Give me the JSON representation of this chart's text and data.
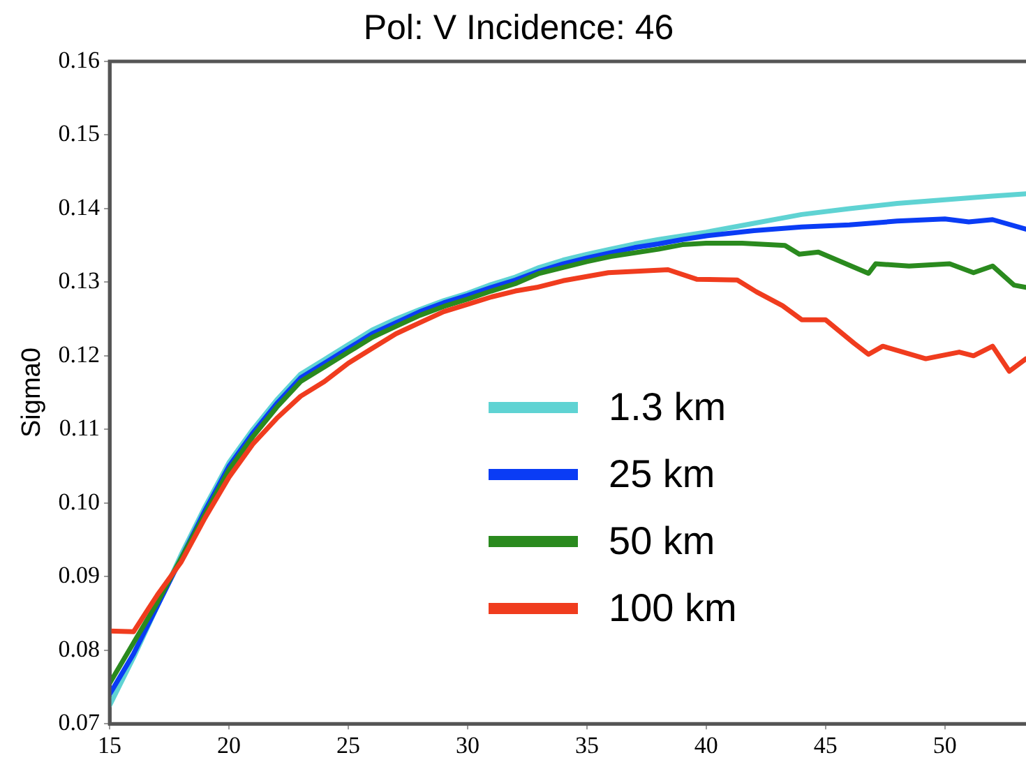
{
  "chart_data": {
    "type": "line",
    "title": "Pol: V Incidence: 46",
    "ylabel": "Sigma0",
    "xlim": [
      15,
      53.4
    ],
    "xticks": [
      15,
      20,
      25,
      30,
      35,
      40,
      45,
      50
    ],
    "ylim": [
      0.07,
      0.16
    ],
    "yticks": [
      0.07,
      0.08,
      0.09,
      {
        "value": 0.1,
        "label": "0.10"
      },
      0.11,
      0.12,
      0.13,
      0.14,
      0.15,
      0.16
    ],
    "grid": false,
    "legend": "bottom right",
    "marker": "none",
    "line_style": "solid",
    "series": [
      {
        "name": "1.3 km",
        "color": "#5fd3d3",
        "x": [
          15,
          16,
          17,
          18,
          19,
          20,
          21,
          22,
          23,
          24,
          25,
          26,
          27,
          28,
          29,
          30,
          31,
          32,
          33,
          34,
          35,
          36,
          37,
          38,
          39,
          40,
          42,
          44,
          46,
          48,
          50,
          52,
          53.4
        ],
        "values": [
          0.0725,
          0.079,
          0.086,
          0.093,
          0.0995,
          0.1055,
          0.11,
          0.114,
          0.1175,
          0.1195,
          0.1215,
          0.1235,
          0.125,
          0.1263,
          0.1275,
          0.1285,
          0.1297,
          0.1307,
          0.132,
          0.133,
          0.1338,
          0.1345,
          0.1352,
          0.1358,
          0.1363,
          0.1368,
          0.138,
          0.1392,
          0.14,
          0.1407,
          0.1412,
          0.1417,
          0.142
        ]
      },
      {
        "name": "25 km",
        "color": "#0a3cf5",
        "x": [
          15,
          16,
          17,
          18,
          19,
          20,
          21,
          22,
          23,
          24,
          25,
          26,
          27,
          28,
          29,
          30,
          31,
          32,
          33,
          34,
          35,
          36,
          37,
          38,
          39,
          40,
          42,
          44,
          46,
          48,
          50,
          51,
          52,
          53.4
        ],
        "values": [
          0.074,
          0.0795,
          0.086,
          0.0925,
          0.099,
          0.105,
          0.1095,
          0.1135,
          0.117,
          0.119,
          0.121,
          0.123,
          0.1245,
          0.126,
          0.1272,
          0.1282,
          0.1293,
          0.1303,
          0.1315,
          0.1325,
          0.1333,
          0.134,
          0.1347,
          0.1352,
          0.1358,
          0.1363,
          0.137,
          0.1375,
          0.1378,
          0.1383,
          0.1386,
          0.1382,
          0.1385,
          0.1372
        ]
      },
      {
        "name": "50 km",
        "color": "#2a8a1e",
        "x": [
          15,
          16,
          17,
          18,
          19,
          20,
          21,
          22,
          23,
          24,
          25,
          26,
          27,
          28,
          29,
          30,
          31,
          32,
          33,
          34,
          35,
          36,
          37,
          38,
          39,
          40,
          41.5,
          43.3,
          43.9,
          44.7,
          46.8,
          47.1,
          48.5,
          50.2,
          51.2,
          52,
          52.9,
          53.4
        ],
        "values": [
          0.0755,
          0.081,
          0.0865,
          0.0925,
          0.0985,
          0.1045,
          0.109,
          0.113,
          0.1165,
          0.1185,
          0.1205,
          0.1225,
          0.124,
          0.1255,
          0.1267,
          0.1277,
          0.1288,
          0.1298,
          0.1312,
          0.132,
          0.1328,
          0.1335,
          0.134,
          0.1345,
          0.1351,
          0.1353,
          0.1353,
          0.135,
          0.1338,
          0.1341,
          0.1312,
          0.1325,
          0.1322,
          0.1325,
          0.1313,
          0.1322,
          0.1296,
          0.1293
        ]
      },
      {
        "name": "100 km",
        "color": "#f03c1e",
        "x": [
          15,
          16,
          16.5,
          17,
          18,
          19,
          20,
          21,
          22,
          23,
          24,
          25,
          26,
          27,
          28,
          29,
          30,
          31,
          32,
          32.9,
          34,
          35.9,
          38.4,
          39.6,
          41.3,
          42.1,
          43.2,
          44,
          45,
          46.2,
          46.8,
          47.4,
          49.2,
          50.6,
          51.2,
          52,
          52.7,
          53.4
        ],
        "values": [
          0.0826,
          0.0825,
          0.085,
          0.0875,
          0.092,
          0.098,
          0.1035,
          0.108,
          0.1115,
          0.1145,
          0.1165,
          0.119,
          0.121,
          0.123,
          0.1245,
          0.126,
          0.127,
          0.128,
          0.1288,
          0.1293,
          0.1302,
          0.1313,
          0.1317,
          0.1304,
          0.1303,
          0.1287,
          0.1268,
          0.1249,
          0.1249,
          0.1217,
          0.1202,
          0.1213,
          0.1196,
          0.1205,
          0.12,
          0.1213,
          0.1179,
          0.1196
        ]
      }
    ]
  }
}
